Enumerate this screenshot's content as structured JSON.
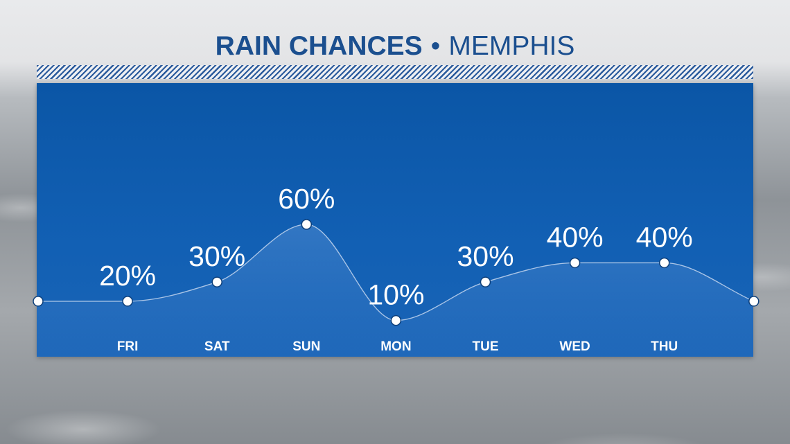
{
  "title": {
    "main": "RAIN CHANCES",
    "separator": "•",
    "city": "MEMPHIS"
  },
  "chart_data": {
    "type": "line",
    "categories": [
      "FRI",
      "SAT",
      "SUN",
      "MON",
      "TUE",
      "WED",
      "THU"
    ],
    "values": [
      20,
      30,
      60,
      10,
      30,
      40,
      40
    ],
    "value_labels": [
      "20%",
      "30%",
      "60%",
      "10%",
      "30%",
      "40%",
      "40%"
    ],
    "edge_values": {
      "left": 20,
      "right": 20
    },
    "ylim": [
      0,
      100
    ],
    "grid": false,
    "title": "RAIN CHANCES • MEMPHIS",
    "colors": {
      "panel": "#0b56a6",
      "line": "#a9c4e6",
      "marker": "#ffffff",
      "title": "#1b4f8f"
    }
  }
}
